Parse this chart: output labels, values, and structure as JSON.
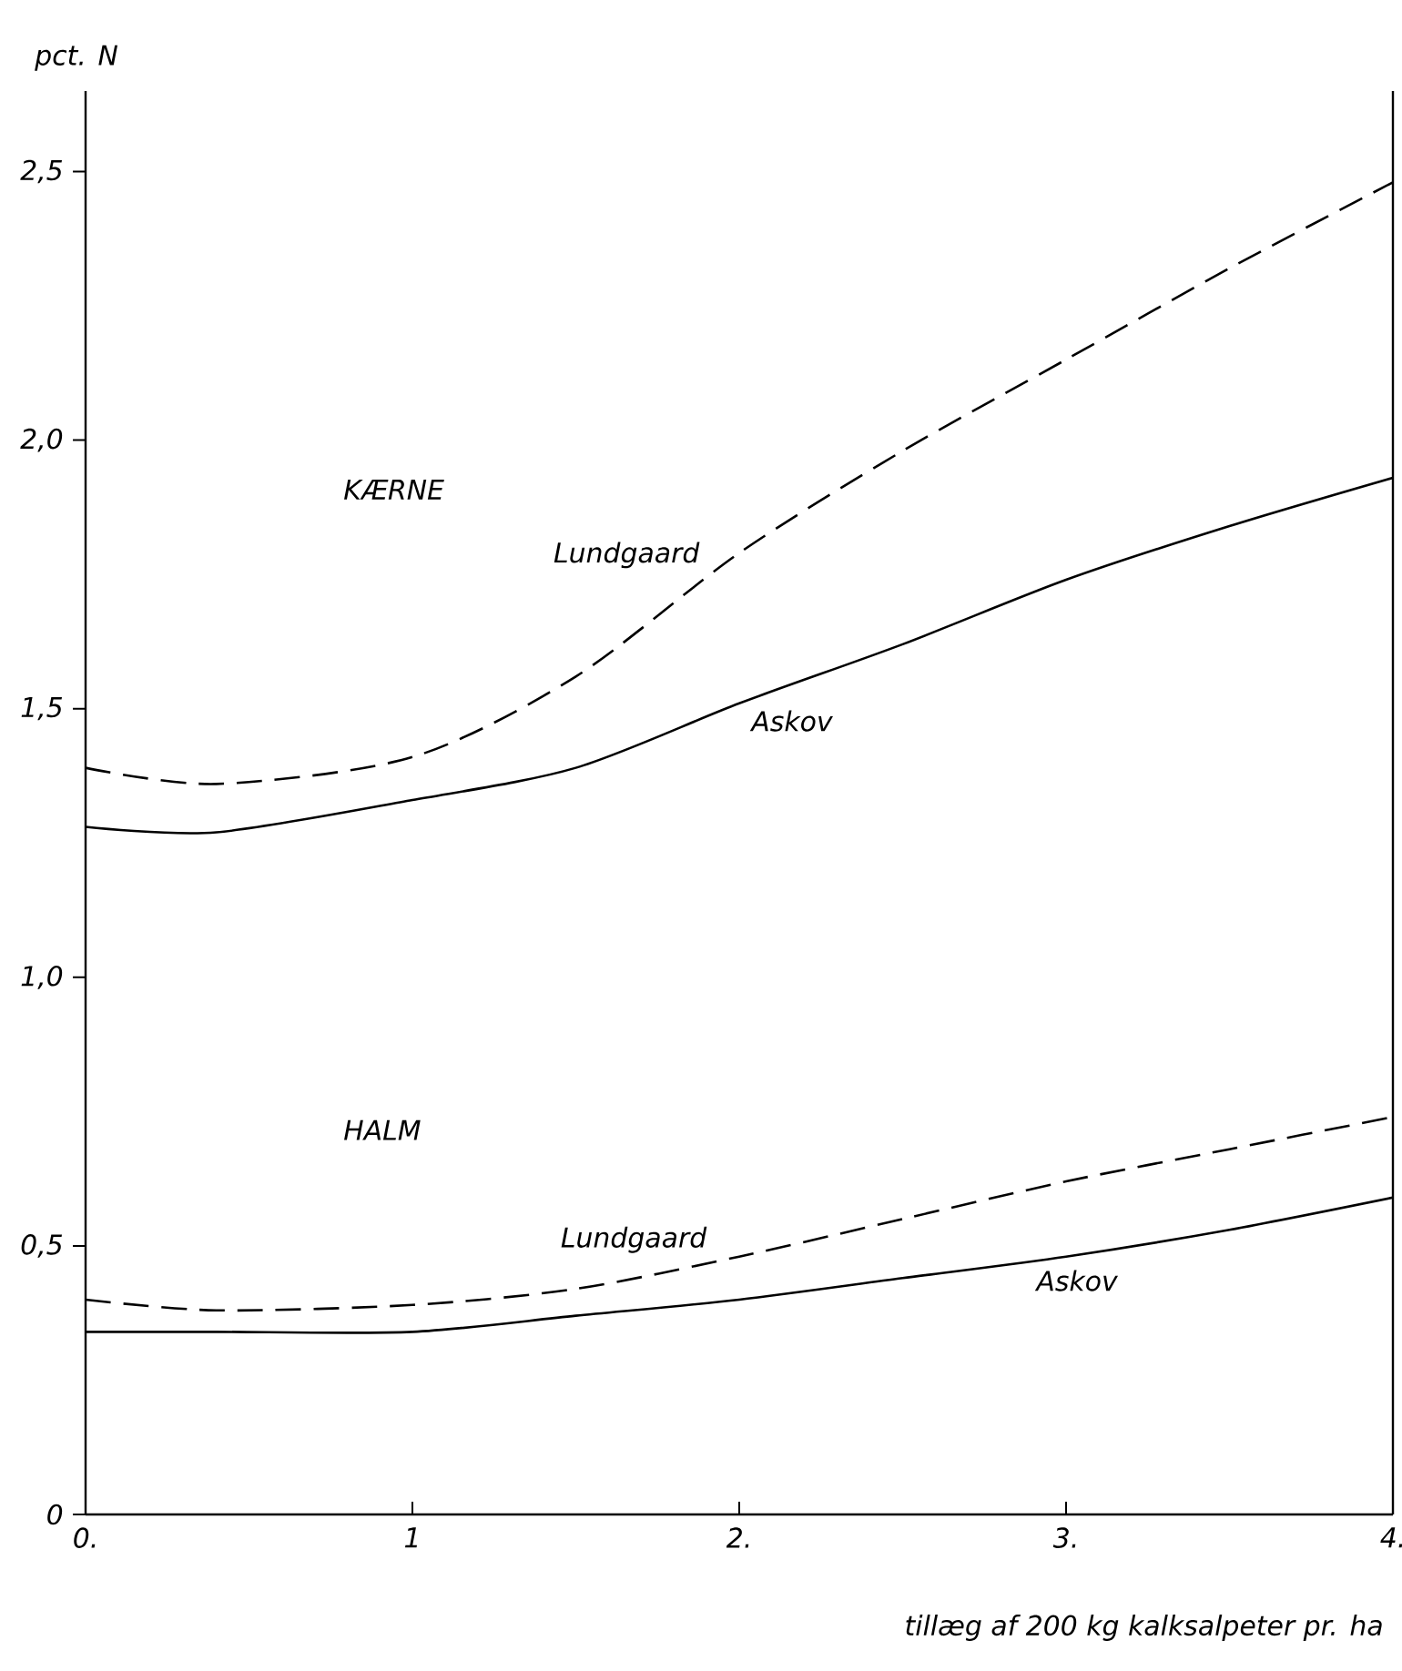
{
  "chart_data": {
    "type": "line",
    "xlabel": "tillæg af  200 kg kalksalpeter pr. ha",
    "ylabel": "pct. N",
    "x": [
      0,
      0.4,
      1,
      1.5,
      2,
      2.5,
      3,
      3.5,
      4
    ],
    "xlim": [
      0,
      4
    ],
    "ylim": [
      0,
      2.65
    ],
    "xticks": [
      {
        "value": 0,
        "label": "0."
      },
      {
        "value": 1,
        "label": "1"
      },
      {
        "value": 2,
        "label": "2."
      },
      {
        "value": 3,
        "label": "3."
      },
      {
        "value": 4,
        "label": "4."
      }
    ],
    "yticks": [
      0,
      {
        "value": 0.5,
        "label": "0,5"
      },
      {
        "value": 1,
        "label": "1,0"
      },
      {
        "value": 1.5,
        "label": "1,5"
      },
      {
        "value": 2,
        "label": "2,0"
      },
      {
        "value": 2.5,
        "label": "2,5"
      }
    ],
    "grid": false,
    "legend": false,
    "marker": "none",
    "series": [
      {
        "name": "Lundgaard",
        "color": "#000000",
        "line_style": "dashed",
        "values": [
          1.39,
          1.36,
          1.41,
          1.56,
          1.79,
          1.98,
          2.15,
          2.32,
          2.48
        ]
      },
      {
        "name": "Askov",
        "color": "#000000",
        "line_style": "solid",
        "values": [
          1.28,
          1.27,
          1.33,
          1.39,
          1.51,
          1.62,
          1.74,
          1.84,
          1.93
        ]
      },
      {
        "name": "Lundgaard",
        "color": "#000000",
        "line_style": "dashed",
        "values": [
          0.4,
          0.38,
          0.39,
          0.42,
          0.48,
          0.55,
          0.62,
          0.68,
          0.74
        ]
      },
      {
        "name": "Askov",
        "color": "#000000",
        "line_style": "solid",
        "values": [
          0.34,
          0.34,
          0.34,
          0.37,
          0.4,
          0.44,
          0.48,
          0.53,
          0.59
        ]
      }
    ],
    "annotations": [
      "KÆRNE",
      "HALM"
    ]
  }
}
